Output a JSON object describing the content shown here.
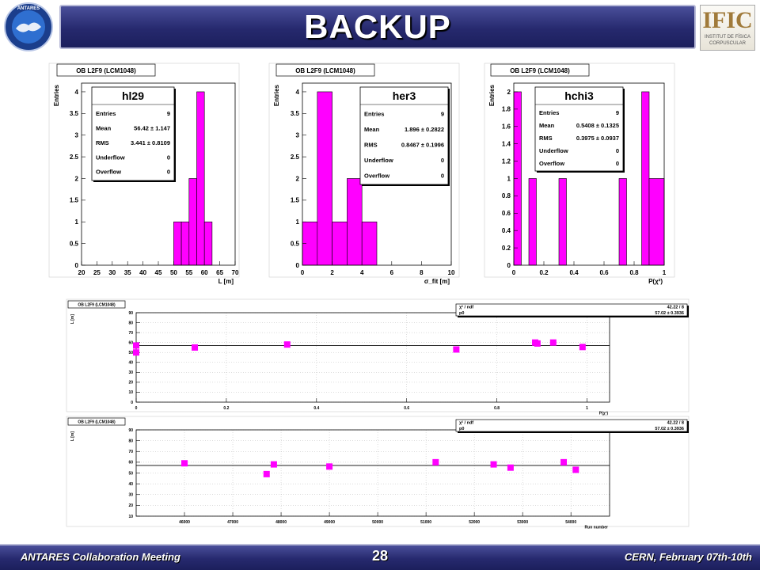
{
  "slide": {
    "title": "BACKUP",
    "left_logo_text": "ANTARES",
    "right_logo": {
      "title": "IFIC",
      "line1": "INSTITUT DE FÍSICA",
      "line2": "CORPUSCULAR"
    },
    "footer": {
      "left": "ANTARES Collaboration Meeting",
      "page": "28",
      "right": "CERN, February 07th-10th"
    }
  },
  "chart_data": [
    {
      "type": "bar",
      "tag": "OB L2F9 (LCM1048)",
      "ylabel": "Entries",
      "xlabel": "L [m]",
      "xlim": [
        20,
        70
      ],
      "ylim": [
        0,
        4.2
      ],
      "xticks": [
        "20",
        "25",
        "30",
        "35",
        "40",
        "45",
        "50",
        "55",
        "60",
        "65",
        "70"
      ],
      "yticks": [
        "0",
        "0.5",
        "1",
        "1.5",
        "2",
        "2.5",
        "3",
        "3.5",
        "4"
      ],
      "bins": [
        {
          "lo": 50,
          "hi": 52.5,
          "v": 1
        },
        {
          "lo": 52.5,
          "hi": 55,
          "v": 1
        },
        {
          "lo": 55,
          "hi": 57.5,
          "v": 2
        },
        {
          "lo": 57.5,
          "hi": 60,
          "v": 4
        },
        {
          "lo": 60,
          "hi": 62.5,
          "v": 1
        }
      ],
      "stats": {
        "name": "hl29",
        "rows": [
          [
            "Entries",
            "9"
          ],
          [
            "Mean",
            "56.42 ± 1.147"
          ],
          [
            "RMS",
            "3.441 ± 0.8109"
          ],
          [
            "Underflow",
            "0"
          ],
          [
            "Overflow",
            "0"
          ]
        ]
      }
    },
    {
      "type": "bar",
      "tag": "OB L2F9 (LCM1048)",
      "ylabel": "Entries",
      "xlabel": "σ_fit [m]",
      "xlim": [
        0,
        10
      ],
      "ylim": [
        0,
        4.2
      ],
      "xticks": [
        "0",
        "2",
        "4",
        "6",
        "8",
        "10"
      ],
      "yticks": [
        "0",
        "0.5",
        "1",
        "1.5",
        "2",
        "2.5",
        "3",
        "3.5",
        "4"
      ],
      "bins": [
        {
          "lo": 0,
          "hi": 1,
          "v": 1
        },
        {
          "lo": 1,
          "hi": 2,
          "v": 4
        },
        {
          "lo": 2,
          "hi": 3,
          "v": 1
        },
        {
          "lo": 3,
          "hi": 4,
          "v": 2
        },
        {
          "lo": 4,
          "hi": 5,
          "v": 1
        }
      ],
      "stats": {
        "name": "her3",
        "rows": [
          [
            "Entries",
            "9"
          ],
          [
            "Mean",
            "1.896 ± 0.2822"
          ],
          [
            "RMS",
            "0.8467 ± 0.1996"
          ],
          [
            "Underflow",
            "0"
          ],
          [
            "Overflow",
            "0"
          ]
        ]
      }
    },
    {
      "type": "bar",
      "tag": "OB L2F9 (LCM1048)",
      "ylabel": "Entries",
      "xlabel": "P(χ²)",
      "xlim": [
        0,
        1
      ],
      "ylim": [
        0,
        2.1
      ],
      "xticks": [
        "0",
        "0.2",
        "0.4",
        "0.6",
        "0.8",
        "1"
      ],
      "yticks": [
        "0",
        "0.2",
        "0.4",
        "0.6",
        "0.8",
        "1",
        "1.2",
        "1.4",
        "1.6",
        "1.8",
        "2"
      ],
      "bins": [
        {
          "lo": 0,
          "hi": 0.05,
          "v": 2
        },
        {
          "lo": 0.1,
          "hi": 0.15,
          "v": 1
        },
        {
          "lo": 0.3,
          "hi": 0.35,
          "v": 1
        },
        {
          "lo": 0.7,
          "hi": 0.75,
          "v": 1
        },
        {
          "lo": 0.85,
          "hi": 0.9,
          "v": 2
        },
        {
          "lo": 0.9,
          "hi": 1.0,
          "v": 1
        }
      ],
      "stats": {
        "name": "hchi3",
        "rows": [
          [
            "Entries",
            "9"
          ],
          [
            "Mean",
            "0.5408 ± 0.1325"
          ],
          [
            "RMS",
            "0.3975 ± 0.0937"
          ],
          [
            "Underflow",
            "0"
          ],
          [
            "Overflow",
            "0"
          ]
        ]
      }
    },
    {
      "type": "scatter",
      "tag": "OB L2F9 (LCM1048)",
      "ylabel": "L [m]",
      "xlabel": "P(χ²)",
      "xlim": [
        0,
        1.05
      ],
      "ylim": [
        0,
        90
      ],
      "xticks": [
        "0",
        "0.2",
        "0.4",
        "0.6",
        "0.8",
        "1"
      ],
      "yticks": [
        "0",
        "10",
        "20",
        "30",
        "40",
        "50",
        "60",
        "70",
        "80",
        "90"
      ],
      "fit_value": 57.02,
      "points": [
        [
          0.0,
          57
        ],
        [
          0.0,
          50
        ],
        [
          0.13,
          55
        ],
        [
          0.335,
          58
        ],
        [
          0.71,
          53
        ],
        [
          0.885,
          60
        ],
        [
          0.89,
          59
        ],
        [
          0.925,
          60
        ],
        [
          0.99,
          55.5
        ]
      ],
      "fit": {
        "rows": [
          [
            "χ² / ndf",
            "42.22 / 8"
          ],
          [
            "p0",
            "57.02 ± 0.3936"
          ]
        ]
      }
    },
    {
      "type": "scatter",
      "tag": "OB L2F9 (LCM1048)",
      "ylabel": "L [m]",
      "xlabel": "Run number",
      "xlim": [
        45000,
        54800
      ],
      "ylim": [
        10,
        90
      ],
      "xticks": [
        "46000",
        "47000",
        "48000",
        "49000",
        "50000",
        "51000",
        "52000",
        "53000",
        "54000"
      ],
      "yticks": [
        "10",
        "20",
        "30",
        "40",
        "50",
        "60",
        "70",
        "80",
        "90"
      ],
      "fit_value": 57.02,
      "points": [
        [
          46000,
          59
        ],
        [
          47700,
          49
        ],
        [
          47850,
          58
        ],
        [
          49000,
          56
        ],
        [
          51200,
          60
        ],
        [
          52400,
          58
        ],
        [
          52750,
          55
        ],
        [
          53850,
          60
        ],
        [
          54100,
          53
        ]
      ],
      "fit": {
        "rows": [
          [
            "χ² / ndf",
            "42.22 / 8"
          ],
          [
            "p0",
            "57.02 ± 0.3936"
          ]
        ]
      }
    }
  ]
}
